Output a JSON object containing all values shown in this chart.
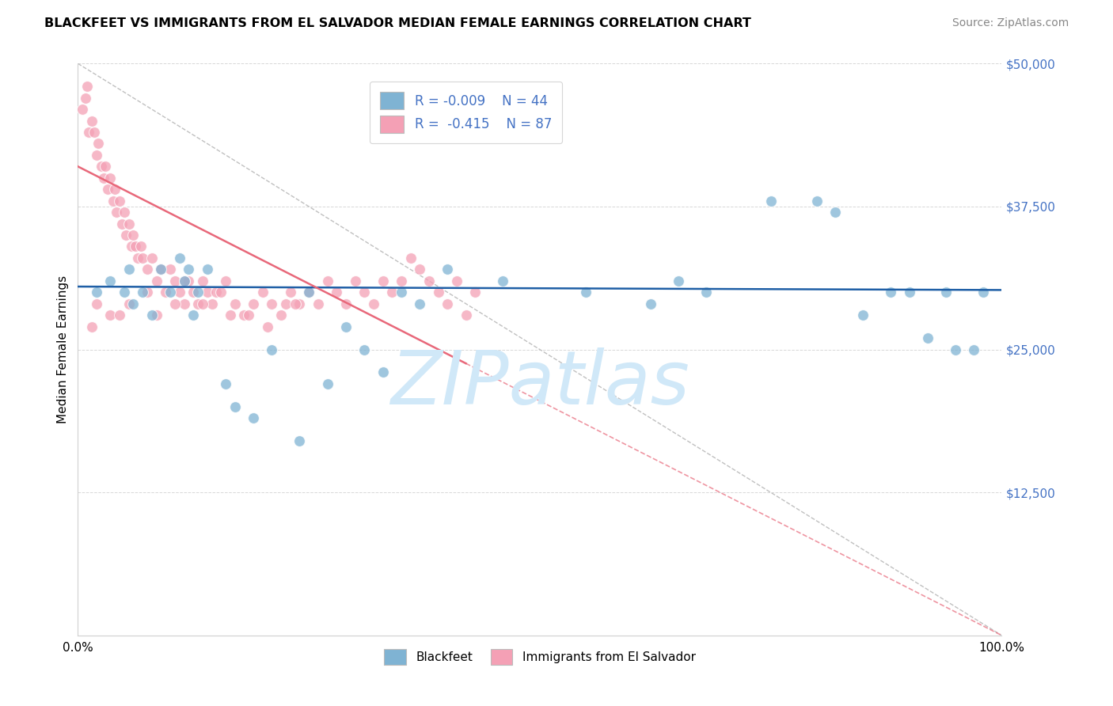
{
  "title": "BLACKFEET VS IMMIGRANTS FROM EL SALVADOR MEDIAN FEMALE EARNINGS CORRELATION CHART",
  "source": "Source: ZipAtlas.com",
  "ylabel": "Median Female Earnings",
  "yticks": [
    0,
    12500,
    25000,
    37500,
    50000
  ],
  "ytick_labels": [
    "",
    "$12,500",
    "$25,000",
    "$37,500",
    "$50,000"
  ],
  "xlim": [
    0,
    100
  ],
  "ylim": [
    0,
    50000
  ],
  "blue_dot_color": "#7fb3d3",
  "pink_dot_color": "#f4a0b5",
  "blue_line_color": "#1f5fa6",
  "pink_line_color": "#e8687a",
  "stat_color": "#4472c4",
  "watermark": "ZIPatlas",
  "watermark_blue": "#d0e8f8",
  "grid_color": "#c8c8c8",
  "background_color": "#ffffff",
  "blue_x": [
    2.0,
    3.5,
    5.0,
    5.5,
    6.0,
    7.0,
    8.0,
    9.0,
    10.0,
    11.0,
    11.5,
    12.0,
    12.5,
    13.0,
    14.0,
    16.0,
    17.0,
    19.0,
    21.0,
    24.0,
    25.0,
    27.0,
    29.0,
    31.0,
    33.0,
    35.0,
    37.0,
    40.0,
    46.0,
    55.0,
    62.0,
    65.0,
    68.0,
    75.0,
    80.0,
    82.0,
    85.0,
    88.0,
    90.0,
    92.0,
    94.0,
    95.0,
    97.0,
    98.0
  ],
  "blue_y": [
    30000,
    31000,
    30000,
    32000,
    29000,
    30000,
    28000,
    32000,
    30000,
    33000,
    31000,
    32000,
    28000,
    30000,
    32000,
    22000,
    20000,
    19000,
    25000,
    17000,
    30000,
    22000,
    27000,
    25000,
    23000,
    30000,
    29000,
    32000,
    31000,
    30000,
    29000,
    31000,
    30000,
    38000,
    38000,
    37000,
    28000,
    30000,
    30000,
    26000,
    30000,
    25000,
    25000,
    30000
  ],
  "pink_x": [
    0.5,
    0.8,
    1.0,
    1.2,
    1.5,
    1.8,
    2.0,
    2.2,
    2.5,
    2.8,
    3.0,
    3.2,
    3.5,
    3.8,
    4.0,
    4.2,
    4.5,
    4.8,
    5.0,
    5.2,
    5.5,
    5.8,
    6.0,
    6.2,
    6.5,
    6.8,
    7.0,
    7.5,
    8.0,
    8.5,
    9.0,
    9.5,
    10.0,
    10.5,
    11.0,
    11.5,
    12.0,
    12.5,
    13.0,
    13.5,
    14.0,
    14.5,
    15.0,
    16.0,
    17.0,
    18.0,
    19.0,
    20.0,
    21.0,
    22.0,
    23.0,
    24.0,
    25.0,
    26.0,
    27.0,
    28.0,
    29.0,
    30.0,
    31.0,
    32.0,
    33.0,
    34.0,
    35.0,
    36.0,
    37.0,
    38.0,
    39.0,
    40.0,
    41.0,
    42.0,
    43.0,
    22.5,
    18.5,
    15.5,
    10.5,
    8.5,
    5.5,
    3.5,
    2.0,
    1.5,
    4.5,
    7.5,
    11.5,
    13.5,
    16.5,
    20.5,
    23.5
  ],
  "pink_y": [
    46000,
    47000,
    48000,
    44000,
    45000,
    44000,
    42000,
    43000,
    41000,
    40000,
    41000,
    39000,
    40000,
    38000,
    39000,
    37000,
    38000,
    36000,
    37000,
    35000,
    36000,
    34000,
    35000,
    34000,
    33000,
    34000,
    33000,
    32000,
    33000,
    31000,
    32000,
    30000,
    32000,
    31000,
    30000,
    29000,
    31000,
    30000,
    29000,
    31000,
    30000,
    29000,
    30000,
    31000,
    29000,
    28000,
    29000,
    30000,
    29000,
    28000,
    30000,
    29000,
    30000,
    29000,
    31000,
    30000,
    29000,
    31000,
    30000,
    29000,
    31000,
    30000,
    31000,
    33000,
    32000,
    31000,
    30000,
    29000,
    31000,
    28000,
    30000,
    29000,
    28000,
    30000,
    29000,
    28000,
    29000,
    28000,
    29000,
    27000,
    28000,
    30000,
    31000,
    29000,
    28000,
    27000,
    29000
  ],
  "blue_trend_y0": 30500,
  "blue_trend_y1": 30200,
  "pink_trend_x0": 0,
  "pink_trend_y0": 41000,
  "pink_trend_x1": 100,
  "pink_trend_y1": 0
}
